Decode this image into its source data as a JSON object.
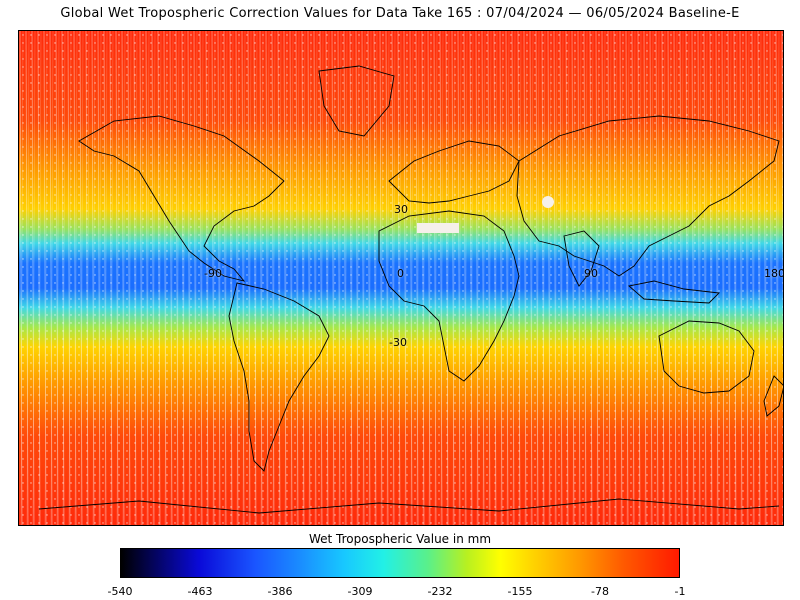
{
  "title": "Global Wet Tropospheric Correction Values for Data Take 165 : 07/04/2024 — 06/05/2024 Baseline-E",
  "map": {
    "lat_labels": [
      "30",
      "0",
      "-30"
    ],
    "lon_labels": [
      "-90",
      "0",
      "90",
      "180"
    ],
    "colors": {
      "background": "#ffffff",
      "polar": "#ff2a0a",
      "mid": "#ff8a00",
      "subtropic": "#ffd400",
      "transition": "#40e0d0",
      "tropic": "#1a73ff"
    }
  },
  "colorbar": {
    "title": "Wet Tropospheric Value in mm",
    "ticks": [
      "-540",
      "-463",
      "-386",
      "-309",
      "-232",
      "-155",
      "-78",
      "-1"
    ],
    "min": -540,
    "max": -1
  }
}
